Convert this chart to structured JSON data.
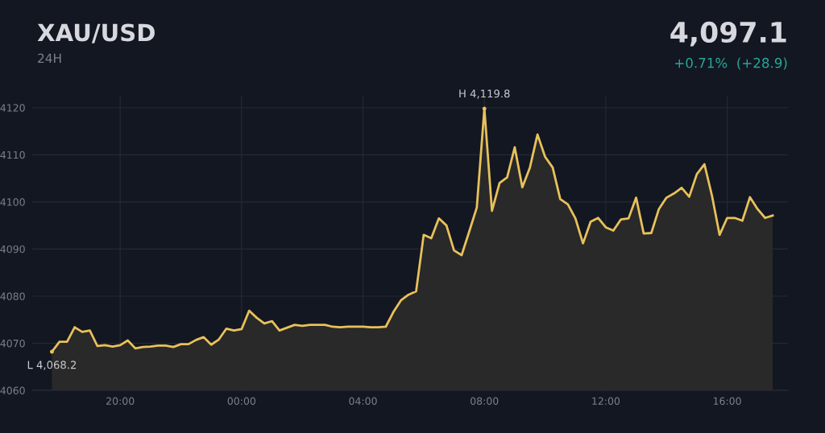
{
  "chart_data": {
    "type": "area",
    "title": "XAU/USD",
    "subtitle": "24H",
    "annotations": [
      {
        "text": "H 4,119.8",
        "x": "2000-01-02T08:00",
        "y": 4119.8
      },
      {
        "text": "L 4,068.2",
        "x": "2000-01-01T17:45",
        "y": 4068.2
      },
      "4,097.1",
      "+0.71%  (+28.9)"
    ],
    "x": [
      "2000-01-01T17:45",
      "2000-01-01T18:00",
      "2000-01-01T18:15",
      "2000-01-01T18:30",
      "2000-01-01T18:45",
      "2000-01-01T19:00",
      "2000-01-01T19:15",
      "2000-01-01T19:30",
      "2000-01-01T19:45",
      "2000-01-01T20:00",
      "2000-01-01T20:15",
      "2000-01-01T20:30",
      "2000-01-01T20:45",
      "2000-01-01T21:00",
      "2000-01-01T21:15",
      "2000-01-01T21:30",
      "2000-01-01T21:45",
      "2000-01-01T22:00",
      "2000-01-01T22:15",
      "2000-01-01T22:30",
      "2000-01-01T22:45",
      "2000-01-01T23:00",
      "2000-01-01T23:15",
      "2000-01-01T23:30",
      "2000-01-01T23:45",
      "2000-01-02T00:00",
      "2000-01-02T00:15",
      "2000-01-02T00:30",
      "2000-01-02T00:45",
      "2000-01-02T01:00",
      "2000-01-02T01:15",
      "2000-01-02T01:30",
      "2000-01-02T01:45",
      "2000-01-02T02:00",
      "2000-01-02T02:15",
      "2000-01-02T02:30",
      "2000-01-02T02:45",
      "2000-01-02T03:00",
      "2000-01-02T03:15",
      "2000-01-02T03:30",
      "2000-01-02T03:45",
      "2000-01-02T04:00",
      "2000-01-02T04:15",
      "2000-01-02T04:30",
      "2000-01-02T04:45",
      "2000-01-02T05:00",
      "2000-01-02T05:15",
      "2000-01-02T05:30",
      "2000-01-02T05:45",
      "2000-01-02T06:00",
      "2000-01-02T06:15",
      "2000-01-02T06:30",
      "2000-01-02T06:45",
      "2000-01-02T07:00",
      "2000-01-02T07:15",
      "2000-01-02T07:30",
      "2000-01-02T07:45",
      "2000-01-02T08:00",
      "2000-01-02T08:15",
      "2000-01-02T08:30",
      "2000-01-02T08:45",
      "2000-01-02T09:00",
      "2000-01-02T09:15",
      "2000-01-02T09:30",
      "2000-01-02T09:45",
      "2000-01-02T10:00",
      "2000-01-02T10:15",
      "2000-01-02T10:30",
      "2000-01-02T10:45",
      "2000-01-02T11:00",
      "2000-01-02T11:15",
      "2000-01-02T11:30",
      "2000-01-02T11:45",
      "2000-01-02T12:00",
      "2000-01-02T12:15",
      "2000-01-02T12:30",
      "2000-01-02T12:45",
      "2000-01-02T13:00",
      "2000-01-02T13:15",
      "2000-01-02T13:30",
      "2000-01-02T13:45",
      "2000-01-02T14:00",
      "2000-01-02T14:15",
      "2000-01-02T14:30",
      "2000-01-02T14:45",
      "2000-01-02T15:00",
      "2000-01-02T15:15",
      "2000-01-02T15:30",
      "2000-01-02T15:45",
      "2000-01-02T16:00",
      "2000-01-02T16:15",
      "2000-01-02T16:30",
      "2000-01-02T16:45",
      "2000-01-02T17:00",
      "2000-01-02T17:15",
      "2000-01-02T17:30"
    ],
    "series": [
      {
        "color": "#e8c15a",
        "values": [
          4068.2,
          4070.3,
          4070.3,
          4073.4,
          4072.4,
          4072.7,
          4069.4,
          4069.6,
          4069.3,
          4069.6,
          4070.6,
          4068.9,
          4069.2,
          4069.3,
          4069.5,
          4069.5,
          4069.2,
          4069.8,
          4069.8,
          4070.7,
          4071.3,
          4069.7,
          4070.8,
          4073.1,
          4072.7,
          4073.0,
          4076.9,
          4075.4,
          4074.2,
          4074.7,
          4072.7,
          4073.3,
          4073.9,
          4073.7,
          4073.9,
          4073.9,
          4073.9,
          4073.5,
          4073.4,
          4073.5,
          4073.5,
          4073.5,
          4073.4,
          4073.4,
          4073.5,
          4076.6,
          4079.1,
          4080.3,
          4081.0,
          4093.0,
          4092.3,
          4096.5,
          4095.0,
          4089.7,
          4088.7,
          4093.7,
          4098.8,
          4119.8,
          4098.1,
          4104.0,
          4105.2,
          4111.6,
          4103.1,
          4107.3,
          4114.3,
          4109.6,
          4107.3,
          4100.6,
          4099.5,
          4096.5,
          4091.2,
          4095.8,
          4096.6,
          4094.6,
          4093.9,
          4096.3,
          4096.5,
          4100.9,
          4093.3,
          4093.4,
          4098.5,
          4100.9,
          4101.8,
          4103.0,
          4101.1,
          4105.9,
          4108.0,
          4101.3,
          4093.0,
          4096.6,
          4096.6,
          4096.0,
          4101.0,
          4098.5,
          4096.6,
          4097.1
        ]
      }
    ],
    "xlim": [
      "2000-01-01T17:06",
      "2000-01-02T18:00"
    ],
    "xticks": [
      {
        "value": "2000-01-01T20:00",
        "label": "20:00"
      },
      {
        "value": "2000-01-02T00:00",
        "label": "00:00"
      },
      {
        "value": "2000-01-02T04:00",
        "label": "04:00"
      },
      {
        "value": "2000-01-02T08:00",
        "label": "08:00"
      },
      {
        "value": "2000-01-02T12:00",
        "label": "12:00"
      },
      {
        "value": "2000-01-02T16:00",
        "label": "16:00"
      }
    ],
    "ylim": [
      4060,
      4122.5
    ],
    "yticks": [
      4060,
      4070,
      4080,
      4090,
      4100,
      4110,
      4120
    ],
    "grid": true
  }
}
